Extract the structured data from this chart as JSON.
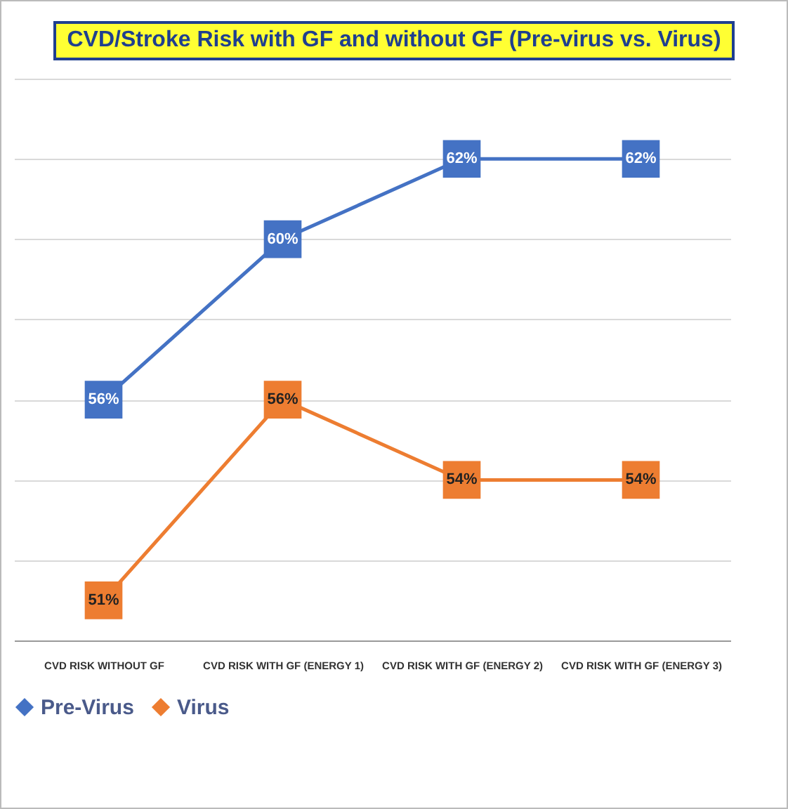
{
  "chart_data": {
    "type": "line",
    "title": "CVD/Stroke Risk with GF and without GF (Pre-virus vs. Virus)",
    "categories": [
      "CVD RISK WITHOUT GF",
      "CVD RISK WITH GF (ENERGY 1)",
      "CVD RISK WITH GF (ENERGY 2)",
      "CVD RISK WITH GF (ENERGY 3)"
    ],
    "series": [
      {
        "name": "Pre-Virus",
        "color": "#4472c4",
        "values": [
          56,
          60,
          62,
          62
        ],
        "value_labels": [
          "56%",
          "60%",
          "62%",
          "62%"
        ]
      },
      {
        "name": "Virus",
        "color": "#ed7d31",
        "values": [
          51,
          56,
          54,
          54
        ],
        "value_labels": [
          "51%",
          "56%",
          "54%",
          "54%"
        ]
      }
    ],
    "ylim": [
      50,
      64
    ],
    "yticks": [
      {
        "value": 50,
        "label": null
      },
      {
        "value": 52,
        "label": null
      },
      {
        "value": 54,
        "label": null
      },
      {
        "value": 56,
        "label": null
      },
      {
        "value": 58,
        "label": null
      },
      {
        "value": 60,
        "label": null
      },
      {
        "value": 62,
        "label": null
      },
      {
        "value": 64,
        "label": null
      }
    ],
    "tick_labels": "x",
    "grid": "y",
    "legend": "bottom",
    "marker": "square",
    "line_style": "solid"
  }
}
